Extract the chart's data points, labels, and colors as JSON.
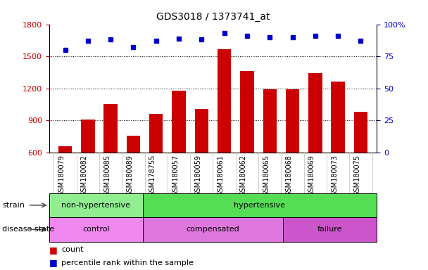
{
  "title": "GDS3018 / 1373741_at",
  "samples": [
    "GSM180079",
    "GSM180082",
    "GSM180085",
    "GSM180089",
    "GSM178755",
    "GSM180057",
    "GSM180059",
    "GSM180061",
    "GSM180062",
    "GSM180065",
    "GSM180068",
    "GSM180069",
    "GSM180073",
    "GSM180075"
  ],
  "counts": [
    660,
    910,
    1055,
    760,
    960,
    1180,
    1010,
    1565,
    1360,
    1195,
    1190,
    1340,
    1265,
    980
  ],
  "percentiles": [
    80,
    87,
    88,
    82,
    87,
    89,
    88,
    93,
    91,
    90,
    90,
    91,
    91,
    87
  ],
  "ylim_left": [
    600,
    1800
  ],
  "ylim_right": [
    0,
    100
  ],
  "yticks_left": [
    600,
    900,
    1200,
    1500,
    1800
  ],
  "yticks_right": [
    0,
    25,
    50,
    75,
    100
  ],
  "bar_color": "#cc0000",
  "dot_color": "#0000cc",
  "strain_groups": [
    {
      "label": "non-hypertensive",
      "start": 0,
      "end": 4,
      "color": "#90ee90"
    },
    {
      "label": "hypertensive",
      "start": 4,
      "end": 14,
      "color": "#55dd55"
    }
  ],
  "disease_groups": [
    {
      "label": "control",
      "start": 0,
      "end": 4,
      "color": "#ee88ee"
    },
    {
      "label": "compensated",
      "start": 4,
      "end": 10,
      "color": "#dd77dd"
    },
    {
      "label": "failure",
      "start": 10,
      "end": 14,
      "color": "#cc55cc"
    }
  ],
  "legend_count_color": "#cc0000",
  "legend_dot_color": "#0000cc",
  "tick_label_color_left": "#cc0000",
  "tick_label_color_right": "#0000cc"
}
